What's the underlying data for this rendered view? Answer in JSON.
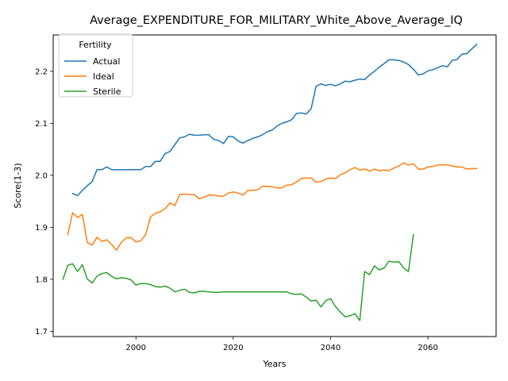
{
  "chart_data": {
    "type": "line",
    "title": "Average_EXPENDITURE_FOR_MILITARY_White_Above_Average_IQ",
    "xlabel": "Years",
    "ylabel": "Score(1-3)",
    "xlim": [
      1983,
      2074
    ],
    "ylim": [
      1.69,
      2.27
    ],
    "xticks": [
      2000,
      2020,
      2040,
      2060
    ],
    "yticks": [
      1.7,
      1.8,
      1.9,
      2.0,
      2.1,
      2.2
    ],
    "grid": false,
    "legend": {
      "title": "Fertility",
      "placement": "top-left"
    },
    "series": [
      {
        "name": "Actual",
        "color": "#1f77b4",
        "x": [
          1987,
          1988,
          1989,
          1990,
          1991,
          1992,
          1993,
          1994,
          1995,
          1996,
          1997,
          1998,
          1999,
          2000,
          2001,
          2002,
          2003,
          2004,
          2005,
          2006,
          2007,
          2008,
          2009,
          2010,
          2011,
          2012,
          2013,
          2014,
          2015,
          2016,
          2017,
          2018,
          2019,
          2020,
          2021,
          2022,
          2023,
          2024,
          2025,
          2026,
          2027,
          2028,
          2029,
          2030,
          2031,
          2032,
          2033,
          2034,
          2035,
          2036,
          2037,
          2038,
          2039,
          2040,
          2041,
          2042,
          2043,
          2044,
          2045,
          2046,
          2047,
          2048,
          2049,
          2050,
          2051,
          2052,
          2053,
          2054,
          2055,
          2056,
          2057,
          2058,
          2059,
          2060,
          2061,
          2062,
          2063,
          2064,
          2065,
          2066,
          2067,
          2068,
          2069,
          2070
        ],
        "values": [
          1.965,
          1.961,
          1.971,
          1.98,
          1.988,
          2.011,
          2.011,
          2.016,
          2.011,
          2.011,
          2.011,
          2.011,
          2.011,
          2.011,
          2.011,
          2.017,
          2.017,
          2.027,
          2.027,
          2.042,
          2.046,
          2.059,
          2.072,
          2.074,
          2.079,
          2.077,
          2.077,
          2.078,
          2.078,
          2.069,
          2.067,
          2.061,
          2.075,
          2.074,
          2.066,
          2.062,
          2.067,
          2.071,
          2.074,
          2.078,
          2.084,
          2.087,
          2.095,
          2.1,
          2.103,
          2.107,
          2.119,
          2.12,
          2.118,
          2.128,
          2.171,
          2.176,
          2.173,
          2.175,
          2.172,
          2.176,
          2.181,
          2.18,
          2.183,
          2.185,
          2.184,
          2.193,
          2.2,
          2.208,
          2.215,
          2.222,
          2.222,
          2.221,
          2.218,
          2.213,
          2.204,
          2.193,
          2.195,
          2.201,
          2.203,
          2.207,
          2.211,
          2.209,
          2.221,
          2.223,
          2.233,
          2.234,
          2.243,
          2.252
        ]
      },
      {
        "name": "Ideal",
        "color": "#ff7f0e",
        "x": [
          1986,
          1987,
          1988,
          1989,
          1990,
          1991,
          1992,
          1993,
          1994,
          1995,
          1996,
          1997,
          1998,
          1999,
          2000,
          2001,
          2002,
          2003,
          2004,
          2005,
          2006,
          2007,
          2008,
          2009,
          2010,
          2011,
          2012,
          2013,
          2014,
          2015,
          2016,
          2017,
          2018,
          2019,
          2020,
          2021,
          2022,
          2023,
          2024,
          2025,
          2026,
          2027,
          2028,
          2029,
          2030,
          2031,
          2032,
          2033,
          2034,
          2035,
          2036,
          2037,
          2038,
          2039,
          2040,
          2041,
          2042,
          2043,
          2044,
          2045,
          2046,
          2047,
          2048,
          2049,
          2050,
          2051,
          2052,
          2053,
          2054,
          2055,
          2056,
          2057,
          2058,
          2059,
          2060,
          2061,
          2062,
          2063,
          2064,
          2065,
          2066,
          2067,
          2068,
          2069,
          2070
        ],
        "values": [
          1.886,
          1.928,
          1.919,
          1.925,
          1.871,
          1.866,
          1.881,
          1.873,
          1.876,
          1.867,
          1.856,
          1.871,
          1.88,
          1.88,
          1.872,
          1.874,
          1.886,
          1.92,
          1.927,
          1.93,
          1.936,
          1.947,
          1.942,
          1.963,
          1.964,
          1.963,
          1.963,
          1.955,
          1.958,
          1.962,
          1.962,
          1.96,
          1.96,
          1.966,
          1.968,
          1.966,
          1.962,
          1.971,
          1.971,
          1.972,
          1.979,
          1.979,
          1.978,
          1.976,
          1.976,
          1.981,
          1.982,
          1.987,
          1.994,
          1.995,
          1.995,
          1.987,
          1.988,
          1.993,
          1.995,
          1.994,
          2.001,
          2.005,
          2.011,
          2.015,
          2.01,
          2.012,
          2.008,
          2.012,
          2.009,
          2.01,
          2.009,
          2.014,
          2.018,
          2.024,
          2.02,
          2.022,
          2.012,
          2.012,
          2.016,
          2.017,
          2.02,
          2.02,
          2.02,
          2.018,
          2.016,
          2.016,
          2.012,
          2.013,
          2.013
        ]
      },
      {
        "name": "Sterile",
        "color": "#2ca02c",
        "x": [
          1985,
          1986,
          1987,
          1988,
          1989,
          1990,
          1991,
          1992,
          1993,
          1994,
          1995,
          1996,
          1997,
          1998,
          1999,
          2000,
          2001,
          2002,
          2003,
          2004,
          2005,
          2006,
          2007,
          2008,
          2009,
          2010,
          2011,
          2012,
          2013,
          2014,
          2015,
          2016,
          2017,
          2018,
          2019,
          2020,
          2021,
          2022,
          2023,
          2024,
          2025,
          2026,
          2027,
          2028,
          2029,
          2030,
          2031,
          2032,
          2033,
          2034,
          2035,
          2036,
          2037,
          2038,
          2039,
          2040,
          2041,
          2042,
          2043,
          2044,
          2045,
          2046,
          2047,
          2048,
          2049,
          2050,
          2051,
          2052,
          2053,
          2054,
          2055,
          2056,
          2057
        ],
        "values": [
          1.8,
          1.827,
          1.83,
          1.815,
          1.828,
          1.801,
          1.793,
          1.806,
          1.811,
          1.813,
          1.806,
          1.801,
          1.803,
          1.802,
          1.799,
          1.789,
          1.792,
          1.792,
          1.79,
          1.786,
          1.785,
          1.787,
          1.783,
          1.776,
          1.779,
          1.781,
          1.775,
          1.774,
          1.777,
          1.777,
          1.776,
          1.775,
          1.775,
          1.776,
          1.776,
          1.776,
          1.776,
          1.776,
          1.776,
          1.776,
          1.776,
          1.776,
          1.776,
          1.776,
          1.776,
          1.776,
          1.776,
          1.772,
          1.771,
          1.772,
          1.766,
          1.758,
          1.76,
          1.747,
          1.759,
          1.763,
          1.748,
          1.737,
          1.728,
          1.73,
          1.734,
          1.721,
          1.815,
          1.809,
          1.826,
          1.818,
          1.822,
          1.835,
          1.833,
          1.834,
          1.822,
          1.815,
          1.886
        ]
      }
    ]
  }
}
